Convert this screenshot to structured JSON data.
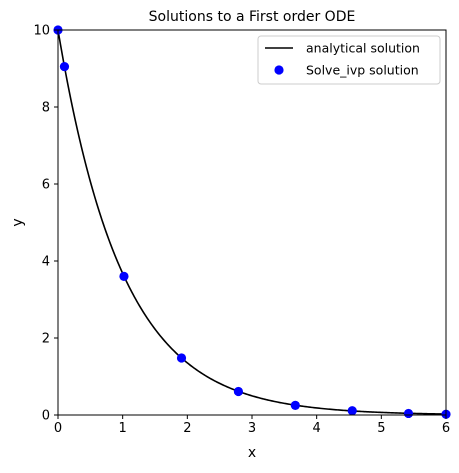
{
  "chart_data": {
    "type": "line",
    "title": "Solutions to a First order ODE",
    "xlabel": "x",
    "ylabel": "y",
    "xlim": [
      0,
      6
    ],
    "ylim": [
      0,
      10
    ],
    "xticks": [
      0,
      1,
      2,
      3,
      4,
      5,
      6
    ],
    "yticks": [
      0,
      2,
      4,
      6,
      8,
      10
    ],
    "grid": false,
    "legend_position": "top-right",
    "series": [
      {
        "name": "analytical solution",
        "kind": "line",
        "color": "#000000",
        "equation": "y = 10 * exp(-x)",
        "x_range": [
          0,
          6
        ]
      },
      {
        "name": "Solve_ivp solution",
        "kind": "scatter",
        "color": "#0000ff",
        "x": [
          0,
          0.1,
          1.02,
          1.91,
          2.79,
          3.67,
          4.55,
          5.42,
          6.0
        ],
        "y": [
          10.0,
          9.05,
          3.6,
          1.48,
          0.61,
          0.25,
          0.11,
          0.04,
          0.02
        ]
      }
    ]
  }
}
